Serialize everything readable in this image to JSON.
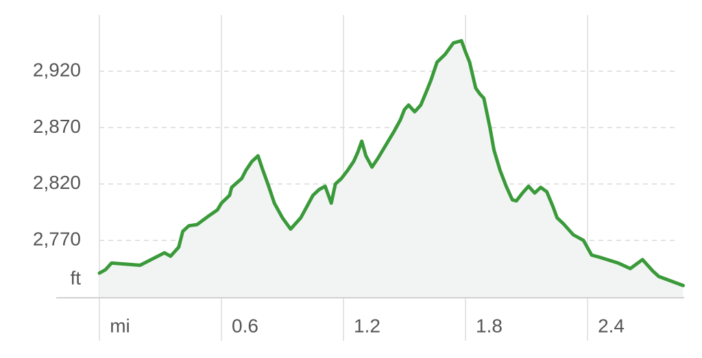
{
  "chart_data": {
    "type": "area",
    "y_unit_label": "ft",
    "x_unit_label": "mi",
    "ylim": [
      2730,
      2980
    ],
    "xlim": [
      0,
      2.87
    ],
    "y_ticks": [
      {
        "value": 2770,
        "label": "2,770"
      },
      {
        "value": 2820,
        "label": "2,820"
      },
      {
        "value": 2870,
        "label": "2,870"
      },
      {
        "value": 2920,
        "label": "2,920"
      }
    ],
    "x_ticks": [
      {
        "value": 0.6,
        "label": "0.6"
      },
      {
        "value": 1.2,
        "label": "1.2"
      },
      {
        "value": 1.8,
        "label": "1.8"
      },
      {
        "value": 2.4,
        "label": "2.4"
      }
    ],
    "grid": true,
    "colors": {
      "line": "#3a9a3a",
      "fill": "#f2f4f4",
      "grid": "#d9d9d9",
      "text": "#555555"
    },
    "series": [
      {
        "values": [
          [
            0.0,
            2741
          ],
          [
            0.03,
            2744
          ],
          [
            0.06,
            2750
          ],
          [
            0.2,
            2748
          ],
          [
            0.32,
            2759
          ],
          [
            0.35,
            2756
          ],
          [
            0.39,
            2764
          ],
          [
            0.41,
            2778
          ],
          [
            0.44,
            2783
          ],
          [
            0.48,
            2784
          ],
          [
            0.51,
            2788
          ],
          [
            0.54,
            2792
          ],
          [
            0.58,
            2797
          ],
          [
            0.6,
            2803
          ],
          [
            0.64,
            2810
          ],
          [
            0.65,
            2817
          ],
          [
            0.7,
            2825
          ],
          [
            0.72,
            2832
          ],
          [
            0.75,
            2840
          ],
          [
            0.78,
            2845
          ],
          [
            0.8,
            2834
          ],
          [
            0.83,
            2819
          ],
          [
            0.86,
            2803
          ],
          [
            0.9,
            2790
          ],
          [
            0.94,
            2780
          ],
          [
            0.99,
            2790
          ],
          [
            1.02,
            2800
          ],
          [
            1.05,
            2810
          ],
          [
            1.08,
            2815
          ],
          [
            1.11,
            2818
          ],
          [
            1.12,
            2813
          ],
          [
            1.14,
            2803
          ],
          [
            1.16,
            2820
          ],
          [
            1.19,
            2825
          ],
          [
            1.22,
            2832
          ],
          [
            1.25,
            2840
          ],
          [
            1.27,
            2848
          ],
          [
            1.29,
            2858
          ],
          [
            1.31,
            2845
          ],
          [
            1.34,
            2835
          ],
          [
            1.37,
            2843
          ],
          [
            1.41,
            2855
          ],
          [
            1.45,
            2867
          ],
          [
            1.48,
            2877
          ],
          [
            1.5,
            2886
          ],
          [
            1.52,
            2890
          ],
          [
            1.55,
            2884
          ],
          [
            1.58,
            2890
          ],
          [
            1.61,
            2903
          ],
          [
            1.63,
            2912
          ],
          [
            1.66,
            2928
          ],
          [
            1.7,
            2935
          ],
          [
            1.74,
            2945
          ],
          [
            1.78,
            2947
          ],
          [
            1.8,
            2937
          ],
          [
            1.82,
            2928
          ],
          [
            1.85,
            2905
          ],
          [
            1.87,
            2900
          ],
          [
            1.89,
            2896
          ],
          [
            1.92,
            2870
          ],
          [
            1.94,
            2850
          ],
          [
            1.97,
            2832
          ],
          [
            2.0,
            2818
          ],
          [
            2.03,
            2806
          ],
          [
            2.05,
            2805
          ],
          [
            2.08,
            2812
          ],
          [
            2.11,
            2818
          ],
          [
            2.14,
            2812
          ],
          [
            2.17,
            2817
          ],
          [
            2.2,
            2813
          ],
          [
            2.23,
            2800
          ],
          [
            2.25,
            2790
          ],
          [
            2.28,
            2785
          ],
          [
            2.33,
            2775
          ],
          [
            2.38,
            2770
          ],
          [
            2.42,
            2757
          ],
          [
            2.46,
            2755
          ],
          [
            2.55,
            2750
          ],
          [
            2.61,
            2745
          ],
          [
            2.67,
            2753
          ],
          [
            2.72,
            2743
          ],
          [
            2.75,
            2738
          ],
          [
            2.87,
            2730
          ]
        ]
      }
    ]
  }
}
